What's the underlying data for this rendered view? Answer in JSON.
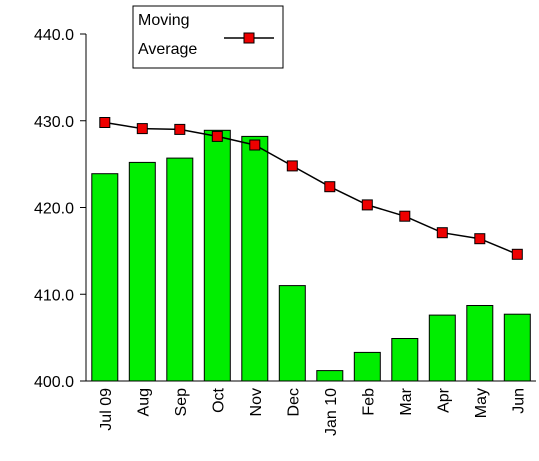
{
  "chart_data": {
    "type": "bar",
    "categories": [
      "Jul 09",
      "Aug",
      "Sep",
      "Oct",
      "Nov",
      "Dec",
      "Jan 10",
      "Feb",
      "Mar",
      "Apr",
      "May",
      "Jun"
    ],
    "series": [
      {
        "type": "bar",
        "values": [
          423.9,
          425.2,
          425.7,
          428.9,
          428.2,
          411.0,
          401.2,
          403.3,
          404.9,
          407.6,
          408.7,
          407.7
        ],
        "color": "#00ee00"
      },
      {
        "type": "line",
        "name": "Moving Average",
        "values": [
          429.8,
          429.1,
          429.0,
          428.2,
          427.2,
          424.8,
          422.4,
          420.3,
          419.0,
          417.1,
          416.4,
          414.6
        ],
        "color": "#000000",
        "marker_color": "#ee0000"
      }
    ],
    "legend": {
      "lines": [
        "Moving",
        "Average"
      ],
      "placement": "top"
    },
    "ylim": [
      400.0,
      440.0
    ],
    "yticks": [
      "440.0",
      "430.0",
      "420.0",
      "410.0",
      "400.0"
    ],
    "grid": false
  }
}
